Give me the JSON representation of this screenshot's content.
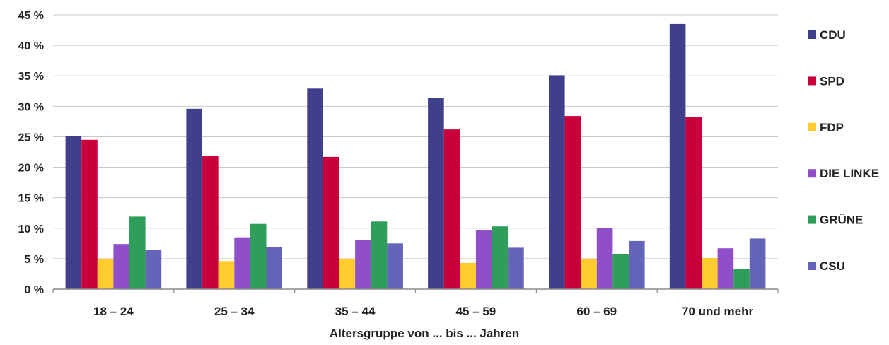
{
  "chart_data": {
    "type": "bar",
    "title": "",
    "xlabel": "Altersgruppe von ... bis ... Jahren",
    "ylabel": "",
    "ylim": [
      0,
      45
    ],
    "yticks": [
      0,
      5,
      10,
      15,
      20,
      25,
      30,
      35,
      40,
      45
    ],
    "ytick_labels": [
      "0 %",
      "5 %",
      "10 %",
      "15 %",
      "20 %",
      "25 %",
      "30 %",
      "35 %",
      "40 %",
      "45 %"
    ],
    "grid": "horizontal",
    "legend_position": "right",
    "categories": [
      "18 – 24",
      "25 – 34",
      "35 – 44",
      "45 – 59",
      "60 – 69",
      "70 und mehr"
    ],
    "series": [
      {
        "name": "CDU",
        "color": "#3f3f8c",
        "values": [
          25.1,
          29.6,
          32.9,
          31.4,
          35.1,
          43.5
        ]
      },
      {
        "name": "SPD",
        "color": "#c8003c",
        "values": [
          24.5,
          21.9,
          21.7,
          26.2,
          28.4,
          28.3
        ]
      },
      {
        "name": "FDP",
        "color": "#ffcc2e",
        "values": [
          5.0,
          4.6,
          5.0,
          4.3,
          4.9,
          5.1
        ]
      },
      {
        "name": "DIE LINKE",
        "color": "#8f4fc9",
        "values": [
          7.4,
          8.5,
          8.0,
          9.7,
          10.0,
          6.7
        ]
      },
      {
        "name": "GRÜNE",
        "color": "#2e9e5a",
        "values": [
          11.9,
          10.7,
          11.1,
          10.3,
          5.8,
          3.3
        ]
      },
      {
        "name": "CSU",
        "color": "#6464b8",
        "values": [
          6.4,
          6.9,
          7.5,
          6.8,
          7.9,
          8.3
        ]
      }
    ]
  }
}
